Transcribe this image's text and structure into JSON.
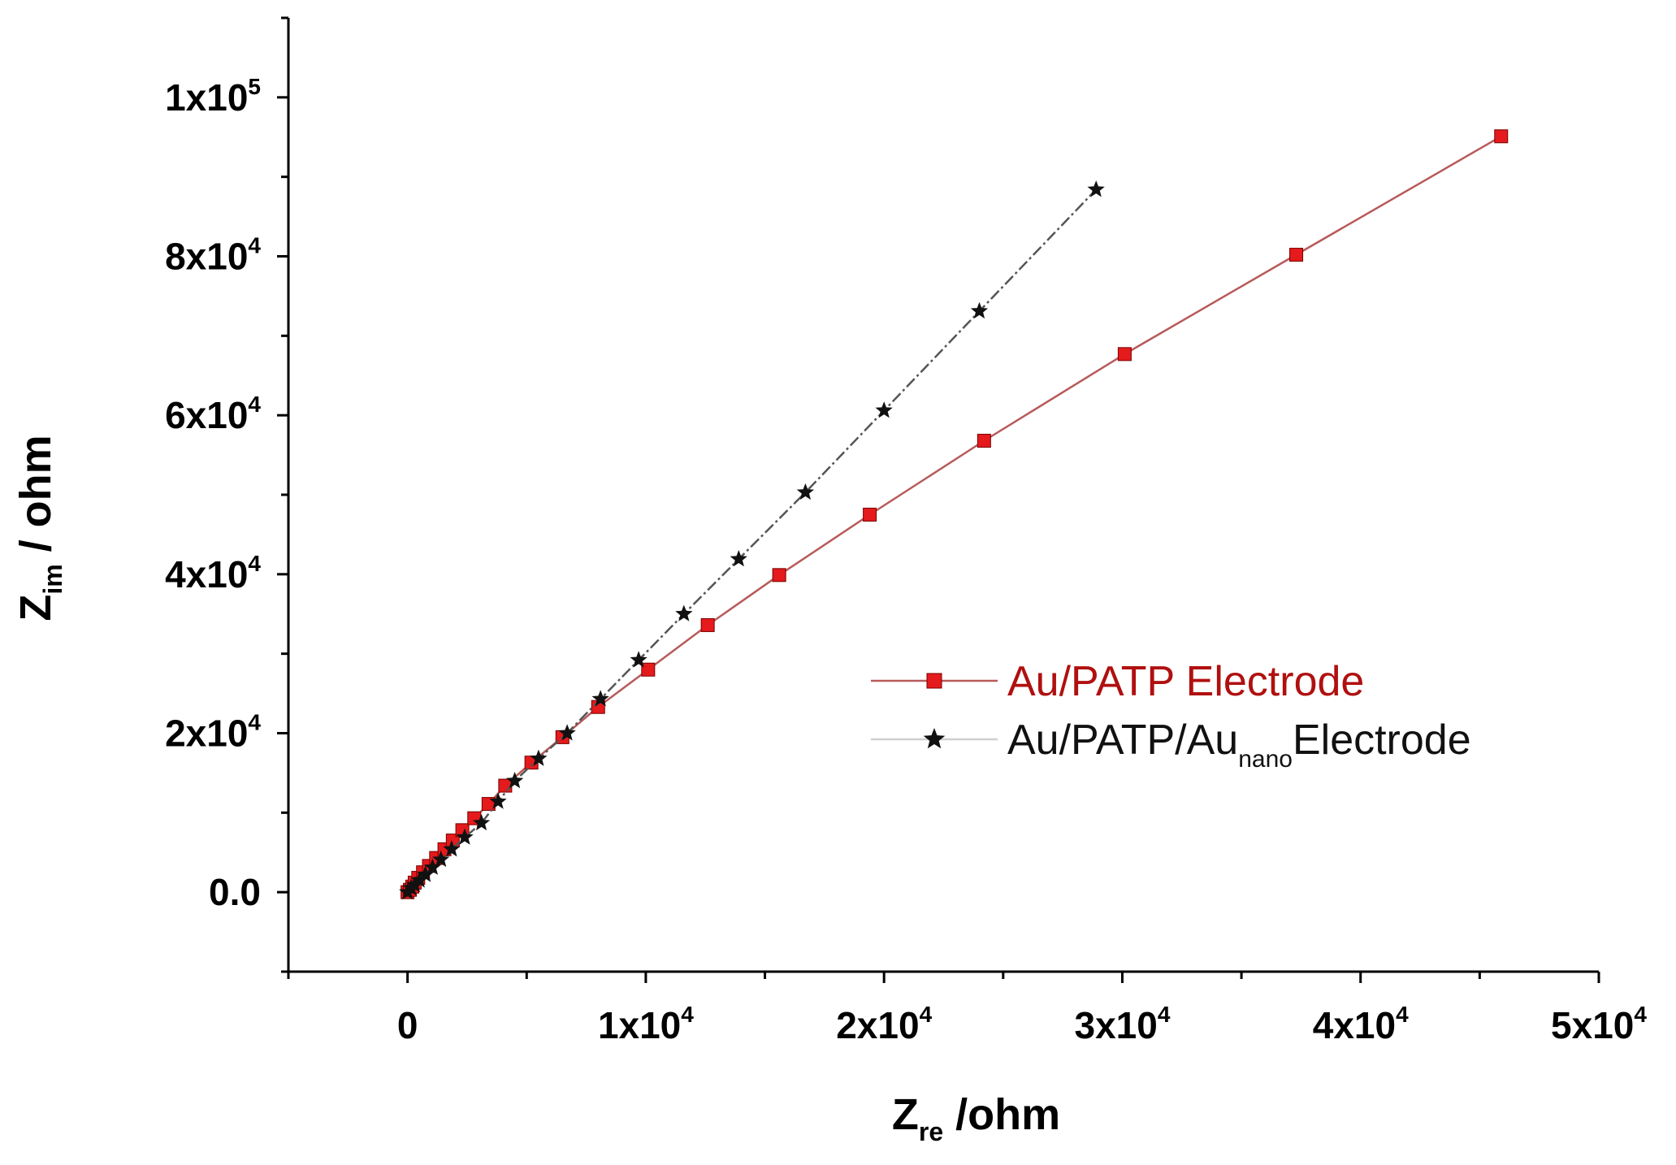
{
  "chart_data": {
    "type": "scatter",
    "title": "",
    "xlabel": {
      "main": "Z",
      "sub": "re",
      "rest": " /ohm"
    },
    "ylabel": {
      "main": "Z",
      "sub": "im",
      "rest": "  / ohm"
    },
    "xlim": [
      -5000,
      50000
    ],
    "ylim": [
      -10000,
      110000
    ],
    "x_ticks": [
      {
        "value": 0,
        "base": "0",
        "exp": ""
      },
      {
        "value": 10000,
        "base": "1x10",
        "exp": "4"
      },
      {
        "value": 20000,
        "base": "2x10",
        "exp": "4"
      },
      {
        "value": 30000,
        "base": "3x10",
        "exp": "4"
      },
      {
        "value": 40000,
        "base": "4x10",
        "exp": "4"
      },
      {
        "value": 50000,
        "base": "5x10",
        "exp": "4"
      }
    ],
    "y_ticks": [
      {
        "value": 0,
        "base": "0.0",
        "exp": ""
      },
      {
        "value": 20000,
        "base": "2x10",
        "exp": "4"
      },
      {
        "value": 40000,
        "base": "4x10",
        "exp": "4"
      },
      {
        "value": 60000,
        "base": "6x10",
        "exp": "4"
      },
      {
        "value": 80000,
        "base": "8x10",
        "exp": "4"
      },
      {
        "value": 100000,
        "base": "1x10",
        "exp": "5"
      }
    ],
    "legend_position": "right",
    "series": [
      {
        "name": "Au/PATP Electrode",
        "label": {
          "main": "Au/PATP Electrode",
          "sub": "",
          "rest": ""
        },
        "color": "#e41a1c",
        "line_color": "#b85a5a",
        "marker": "square",
        "points": [
          [
            0,
            0
          ],
          [
            100,
            300
          ],
          [
            200,
            700
          ],
          [
            300,
            1200
          ],
          [
            450,
            1800
          ],
          [
            650,
            2500
          ],
          [
            900,
            3300
          ],
          [
            1200,
            4300
          ],
          [
            1550,
            5400
          ],
          [
            1900,
            6500
          ],
          [
            2300,
            7800
          ],
          [
            2800,
            9300
          ],
          [
            3400,
            11100
          ],
          [
            4100,
            13400
          ],
          [
            5200,
            16300
          ],
          [
            6500,
            19500
          ],
          [
            8000,
            23300
          ],
          [
            10100,
            28000
          ],
          [
            12600,
            33600
          ],
          [
            15600,
            39900
          ],
          [
            19400,
            47500
          ],
          [
            24200,
            56800
          ],
          [
            30100,
            67700
          ],
          [
            37300,
            80200
          ],
          [
            45900,
            95100
          ]
        ]
      },
      {
        "name": "Au/PATP/Au nano Electrode",
        "label": {
          "main": "Au/PATP/Au",
          "sub": "nano",
          "rest": "Electrode"
        },
        "color": "#111111",
        "line_color": "#555555",
        "marker": "star",
        "points": [
          [
            0,
            0
          ],
          [
            150,
            500
          ],
          [
            300,
            900
          ],
          [
            500,
            1500
          ],
          [
            750,
            2200
          ],
          [
            1050,
            3100
          ],
          [
            1400,
            4100
          ],
          [
            1850,
            5400
          ],
          [
            2400,
            6900
          ],
          [
            3100,
            8700
          ],
          [
            3800,
            11400
          ],
          [
            4500,
            14000
          ],
          [
            5500,
            16800
          ],
          [
            6700,
            20000
          ],
          [
            8100,
            24300
          ],
          [
            9700,
            29200
          ],
          [
            11600,
            35000
          ],
          [
            13900,
            41900
          ],
          [
            16700,
            50300
          ],
          [
            20000,
            60600
          ],
          [
            24000,
            73100
          ],
          [
            28900,
            88400
          ]
        ]
      }
    ]
  }
}
